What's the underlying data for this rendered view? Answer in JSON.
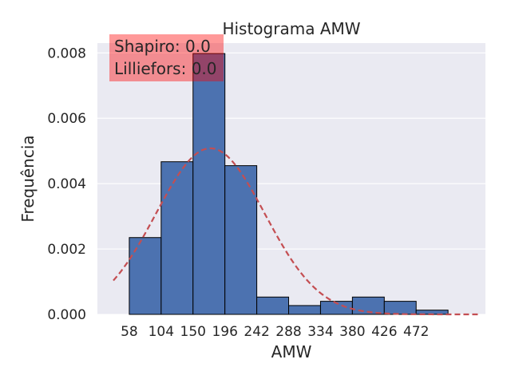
{
  "chart_data": {
    "type": "bar",
    "title": "Histograma AMW",
    "xlabel": "AMW",
    "ylabel": "Frequência",
    "x_tick_labels": [
      "58",
      "104",
      "150",
      "196",
      "242",
      "288",
      "334",
      "380",
      "426",
      "472"
    ],
    "y_tick_labels": [
      "0.000",
      "0.002",
      "0.004",
      "0.006",
      "0.008"
    ],
    "y_ticks": [
      0.0,
      0.002,
      0.004,
      0.006,
      0.008
    ],
    "bin_edges": [
      58,
      104,
      150,
      196,
      242,
      288,
      334,
      380,
      426,
      472,
      518
    ],
    "values": [
      0.00235,
      0.00467,
      0.00798,
      0.00455,
      0.00053,
      0.00027,
      0.0004,
      0.00053,
      0.0004,
      0.00013
    ],
    "xlim": [
      12,
      572
    ],
    "ylim": [
      0,
      0.0083
    ],
    "normal_curve": {
      "mean": 175,
      "std": 78.5,
      "x_range": [
        35,
        562
      ],
      "color": "#c44e52",
      "style": "dashed"
    },
    "bar_color": "#4c72b0",
    "background": "#eaeaf2",
    "grid": "horizontal",
    "annotation": {
      "lines": [
        "Shapiro: 0.0",
        "Lilliefors: 0.0"
      ],
      "box_color": "#ff0000",
      "placement": "top-left"
    }
  }
}
